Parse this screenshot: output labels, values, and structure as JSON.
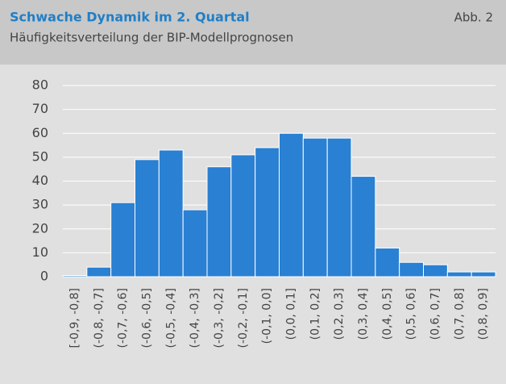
{
  "chart_data": {
    "type": "bar",
    "title": "Schwache Dynamik im 2. Quartal",
    "subtitle": "Häufigkeitsverteilung der BIP-Modellprognosen",
    "figure_label": "Abb. 2",
    "categories": [
      "[-0,9, -0,8]",
      "(-0,8, -0,7]",
      "(-0,7, -0,6]",
      "(-0,6, -0,5]",
      "(-0,5, -0,4]",
      "(-0,4, -0,3]",
      "(-0,3, -0,2]",
      "(-0,2, -0,1]",
      "(-0,1, 0,0]",
      "(0,0, 0,1]",
      "(0,1, 0,2]",
      "(0,2, 0,3]",
      "(0,3, 0,4]",
      "(0,4, 0,5]",
      "(0,5, 0,6]",
      "(0,6, 0,7]",
      "(0,7, 0,8]",
      "(0,8, 0,9]"
    ],
    "values": [
      0.5,
      4,
      31,
      49,
      53,
      28,
      46,
      51,
      54,
      60,
      58,
      58,
      42,
      12,
      6,
      5,
      2,
      2
    ],
    "color": "#2a80d2",
    "ylim": [
      0,
      80
    ],
    "yticks": [
      0,
      10,
      20,
      30,
      40,
      50,
      60,
      70,
      80
    ],
    "grid": true
  }
}
